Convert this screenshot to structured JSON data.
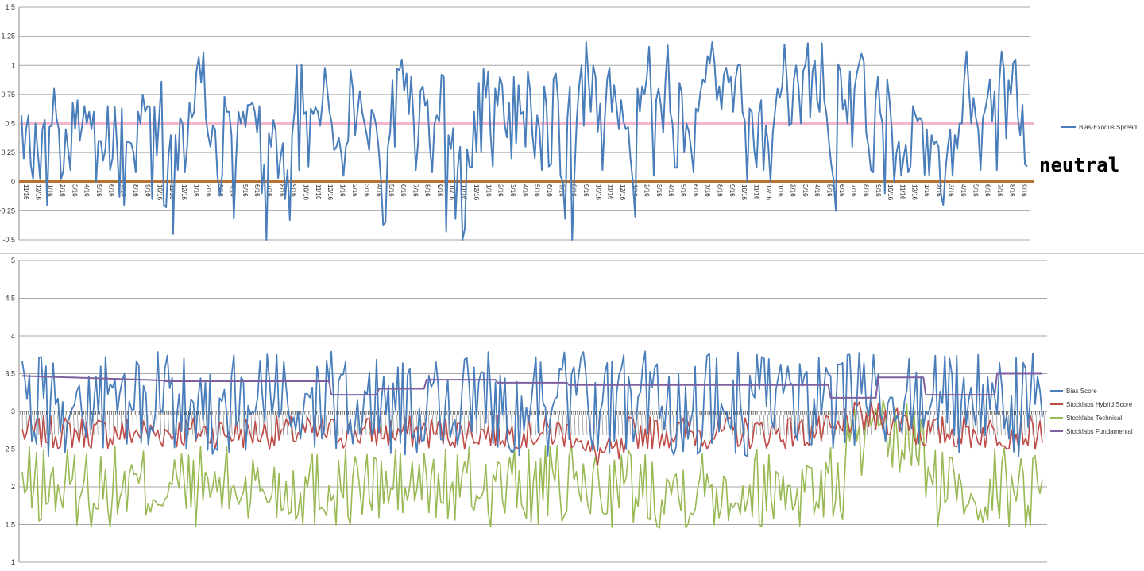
{
  "annotation": {
    "neutral": "neutral"
  },
  "chart_data": [
    {
      "type": "line",
      "title": "",
      "xlabel": "",
      "ylabel": "",
      "ylim": [
        -0.5,
        1.5
      ],
      "yticks": [
        "1.5",
        "1.25",
        "1",
        "0.75",
        "0.5",
        "0.25",
        "0",
        "-0.25",
        "-0.5"
      ],
      "grid": true,
      "legend_position": "right",
      "x_tick_labels": [
        "11/16",
        "12/16",
        "1/16",
        "2/16",
        "3/16",
        "4/16",
        "5/16",
        "6/16",
        "7/16",
        "8/16",
        "9/16",
        "10/16",
        "11/16",
        "12/16",
        "1/16",
        "2/16",
        "3/16",
        "4/16",
        "5/16",
        "6/16",
        "7/16",
        "8/16",
        "9/16",
        "10/16",
        "11/16",
        "12/16",
        "1/16",
        "2/16",
        "3/16",
        "4/16",
        "5/16",
        "6/16",
        "7/16",
        "8/16",
        "9/16",
        "10/16",
        "11/16",
        "12/16",
        "1/16",
        "2/16",
        "3/16",
        "4/16",
        "5/16",
        "6/16",
        "7/16",
        "8/16",
        "9/16",
        "10/16",
        "11/16",
        "12/16",
        "1/16",
        "2/16",
        "3/16",
        "4/16",
        "5/16",
        "6/16",
        "7/16",
        "8/16",
        "9/16",
        "10/16",
        "11/16",
        "12/16",
        "1/16",
        "2/16",
        "3/16",
        "4/16",
        "5/16",
        "6/16",
        "7/16",
        "8/16",
        "9/16",
        "10/16",
        "11/16",
        "12/16",
        "1/16",
        "2/16",
        "3/16",
        "4/16",
        "5/16",
        "6/16",
        "7/16",
        "8/16",
        "9/16"
      ],
      "series": [
        {
          "name": "Bias-Exodus Spread",
          "color": "#4a7ebb",
          "values": [
            0.57,
            0.2,
            0.45,
            0.57,
            0.15,
            0.02,
            0.5,
            0.25,
            0.02,
            0.45,
            0.53,
            -0.2,
            0.47,
            0.48,
            0.8,
            0.55,
            0.45,
            0.02,
            0.1,
            0.45,
            0.28,
            0.1,
            0.68,
            0.45,
            0.7,
            0.35,
            0.48,
            0.65,
            0.5,
            0.6,
            0.45,
            0.6,
            0.0,
            0.35,
            0.35,
            0.18,
            0.28,
            0.65,
            0.1,
            0.2,
            0.64,
            0.3,
            -0.13,
            0.63,
            -0.2,
            0.34,
            0.34,
            0.33,
            0.25,
            0.08,
            0.6,
            0.5,
            0.75,
            0.6,
            0.65,
            0.64,
            -0.15,
            0.64,
            0.22,
            0.55,
            0.86,
            -0.2,
            -0.22,
            0.22,
            0.4,
            -0.45,
            0.4,
            0.1,
            0.55,
            0.5,
            0.08,
            0.3,
            0.68,
            0.55,
            0.6,
            0.95,
            1.07,
            0.85,
            1.11,
            0.55,
            0.4,
            0.3,
            0.48,
            0.45,
            0.05,
            -0.12,
            0.05,
            0.73,
            0.6,
            0.6,
            0.4,
            -0.32,
            0.2,
            0.6,
            0.5,
            0.6,
            0.47,
            0.66,
            0.66,
            0.68,
            0.6,
            0.42,
            0.65,
            -0.1,
            0.15,
            -0.5,
            0.42,
            0.3,
            0.53,
            0.43,
            0.03,
            0.2,
            0.33,
            -0.15,
            0.1,
            -0.33,
            0.4,
            0.6,
            1.0,
            0.1,
            1.01,
            0.58,
            0.6,
            0.13,
            0.63,
            0.58,
            0.64,
            0.6,
            0.48,
            0.68,
            0.98,
            0.8,
            0.6,
            0.5,
            0.27,
            0.3,
            0.38,
            0.25,
            0.05,
            0.3,
            0.35,
            0.96,
            0.8,
            0.4,
            0.6,
            0.78,
            0.6,
            0.5,
            0.4,
            0.27,
            0.62,
            0.58,
            0.48,
            0.3,
            0.03,
            -0.37,
            -0.35,
            0.3,
            0.42,
            0.87,
            0.3,
            0.97,
            0.96,
            1.05,
            0.78,
            0.93,
            0.58,
            0.9,
            0.55,
            0.1,
            0.35,
            0.78,
            0.82,
            0.65,
            0.7,
            0.3,
            0.08,
            0.5,
            0.57,
            0.52,
            0.92,
            0.9,
            -0.43,
            0.4,
            0.28,
            0.46,
            -0.32,
            0.13,
            0.3,
            -0.5,
            -0.4,
            0.28,
            0.13,
            0.12,
            0.6,
            0.25,
            0.85,
            0.25,
            0.97,
            0.72,
            0.95,
            0.42,
            0.13,
            0.8,
            0.65,
            0.9,
            0.83,
            0.5,
            0.38,
            0.68,
            0.2,
            0.9,
            0.33,
            0.83,
            0.58,
            0.6,
            0.3,
            0.95,
            0.78,
            0.4,
            0.2,
            0.57,
            0.45,
            0.1,
            0.82,
            0.65,
            0.13,
            0.15,
            0.88,
            0.93,
            0.7,
            0.05,
            0.0,
            -0.32,
            0.55,
            0.82,
            -0.5,
            0.08,
            0.55,
            0.82,
            1.0,
            0.48,
            1.2,
            0.88,
            0.6,
            1.0,
            0.9,
            0.43,
            0.67,
            0.1,
            0.55,
            0.88,
            0.98,
            0.6,
            0.83,
            0.65,
            0.45,
            0.7,
            0.52,
            0.45,
            0.47,
            0.2,
            0.0,
            -0.3,
            0.8,
            0.6,
            0.82,
            0.75,
            0.9,
            1.16,
            0.67,
            0.05,
            0.7,
            0.8,
            0.66,
            0.42,
            0.88,
            1.17,
            0.6,
            0.5,
            0.12,
            0.12,
            0.85,
            0.76,
            0.25,
            0.5,
            0.43,
            0.28,
            0.08,
            0.63,
            0.6,
            0.78,
            0.88,
            0.85,
            1.08,
            1.02,
            1.2,
            1.02,
            0.7,
            0.82,
            0.62,
            0.92,
            0.98,
            0.85,
            0.9,
            0.6,
            0.88,
            1.0,
            1.01,
            0.6,
            0.52,
            0.0,
            0.63,
            0.6,
            0.28,
            0.12,
            0.58,
            0.7,
            0.1,
            0.48,
            0.32,
            0.0,
            0.42,
            0.62,
            0.8,
            0.72,
            0.82,
            1.18,
            0.88,
            0.48,
            0.5,
            0.88,
            1.0,
            0.82,
            0.5,
            0.95,
            1.01,
            1.19,
            0.55,
            0.95,
            1.04,
            0.7,
            0.6,
            1.19,
            0.7,
            0.58,
            0.35,
            0.15,
            0.02,
            -0.25,
            1.01,
            0.95,
            0.62,
            0.7,
            0.5,
            0.95,
            0.3,
            0.8,
            0.93,
            1.02,
            1.1,
            1.03,
            0.42,
            0.3,
            0.1,
            0.08,
            0.7,
            0.9,
            0.6,
            0.5,
            -0.1,
            0.88,
            0.7,
            0.45,
            0.0,
            0.25,
            0.35,
            0.05,
            0.2,
            0.32,
            0.08,
            0.13,
            0.65,
            0.58,
            0.52,
            0.55,
            0.52,
            0.06,
            0.45,
            0.05,
            0.4,
            0.32,
            0.35,
            0.3,
            -0.1,
            -0.2,
            0.1,
            0.3,
            0.45,
            0.05,
            0.4,
            0.28,
            0.5,
            0.5,
            0.88,
            1.12,
            0.8,
            0.5,
            0.72,
            0.55,
            0.45,
            0.1,
            0.55,
            0.62,
            0.73,
            0.88,
            0.52,
            0.78,
            0.1,
            0.85,
            1.12,
            0.97,
            0.37,
            0.87,
            0.75,
            1.02,
            1.05,
            0.55,
            0.4,
            0.66,
            0.15,
            0.13
          ]
        },
        {
          "name": "",
          "color": "#f3b6cc",
          "values": "constant 0.5"
        },
        {
          "name": "",
          "color": "#b87333",
          "values": "constant 0"
        }
      ]
    },
    {
      "type": "line",
      "title": "",
      "xlabel": "",
      "ylabel": "",
      "ylim": [
        1,
        5
      ],
      "yticks": [
        "5",
        "4.5",
        "4",
        "3.5",
        "3",
        "2.5",
        "2",
        "1.5",
        "1"
      ],
      "grid": true,
      "legend_position": "right",
      "series": [
        {
          "name": "Bias Score",
          "color": "#4a7ebb"
        },
        {
          "name": "Stocklabs Hybrid Score",
          "color": "#be4b48"
        },
        {
          "name": "Stocklabs Technical",
          "color": "#98b954"
        },
        {
          "name": "Stocklabs Fundamental",
          "color": "#7d60a0"
        }
      ]
    }
  ]
}
